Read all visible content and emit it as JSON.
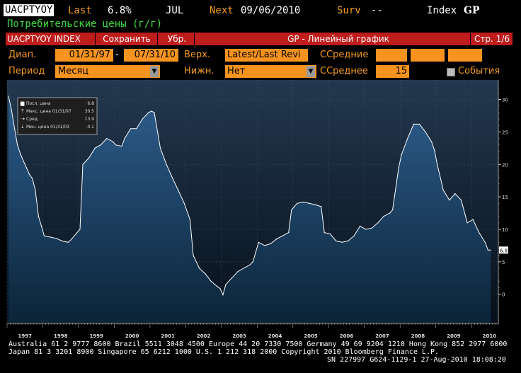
{
  "header": {
    "ticker": "UACPTYOY",
    "last_label": "Last",
    "last_value": "6.8%",
    "period": "JUL",
    "next_label": "Next",
    "next_date": "09/06/2010",
    "surv_label": "Surv",
    "surv_value": "--",
    "index_label": "Index",
    "function": "GP",
    "subtitle": "Потребительские цены (г/г)"
  },
  "toolbar": {
    "security": "UACPTYOY INDEX",
    "save": "Сохранить",
    "delete": "Убр.",
    "title": "GP - Линейный график",
    "page": "Стр. 1/6"
  },
  "controls": {
    "range_label": "Диап.",
    "start_date": "01/31/97",
    "dash": "-",
    "end_date": "07/31/10",
    "upper_label": "Верх.",
    "upper_value": "Latest/Last Revi",
    "ma1_label": "ССредние",
    "period_label": "Период",
    "period_value": "Месяц",
    "lower_label": "Нижн.",
    "lower_value": "Нет",
    "ma2_label": "ССреднее",
    "ma2_value": "15",
    "events_label": "События"
  },
  "legend": {
    "last_label": "Посл. цена",
    "last_value": "6.8",
    "max_label": "Макс. цена 01/31/97",
    "max_value": "30.5",
    "avg_label": "Сред.",
    "avg_value": "13.9",
    "min_label": "Мин. цена 01/31/03",
    "min_value": "-0.1"
  },
  "footer": {
    "line1": "Australia 61 2 9777 8600 Brazil 5511 3048 4500 Europe 44 20 7330 7500 Germany 49 69 9204 1210 Hong Kong 852 2977 6000",
    "line2": "Japan 81 3 3201 8900        Singapore 65 6212 1000        U.S. 1 212 318 2000        Copyright 2010 Bloomberg Finance L.P.",
    "line3": "SN 227997 G624-1129-1 27-Aug-2010 18:08:20"
  },
  "colors": {
    "accent": "#f7931e",
    "toolbar": "#bf1c1c",
    "chart_top": "#23384f",
    "fill_top": "#2e5d8c",
    "fill_bottom": "#0b2438"
  },
  "chart_data": {
    "type": "area",
    "last_value_label": "6.8",
    "x_years": [
      "1997",
      "1998",
      "1999",
      "2000",
      "2001",
      "2002",
      "2003",
      "2004",
      "2005",
      "2006",
      "2007",
      "2008",
      "2009",
      "2010"
    ],
    "yticks": [
      0,
      5,
      10,
      15,
      20,
      25,
      30
    ],
    "ylim": [
      -4.5,
      33
    ],
    "xlim": [
      1997.0,
      2010.75
    ],
    "grid": true,
    "legend_position": "top-left",
    "points": [
      [
        1997.04,
        30.5
      ],
      [
        1997.12,
        28.5
      ],
      [
        1997.21,
        25.5
      ],
      [
        1997.29,
        23.0
      ],
      [
        1997.38,
        21.5
      ],
      [
        1997.46,
        20.5
      ],
      [
        1997.54,
        19.5
      ],
      [
        1997.62,
        18.5
      ],
      [
        1997.71,
        17.8
      ],
      [
        1997.79,
        16.0
      ],
      [
        1997.88,
        12.0
      ],
      [
        1997.96,
        10.5
      ],
      [
        1998.04,
        9.0
      ],
      [
        1998.21,
        8.8
      ],
      [
        1998.38,
        8.6
      ],
      [
        1998.54,
        8.2
      ],
      [
        1998.71,
        8.0
      ],
      [
        1998.79,
        8.4
      ],
      [
        1998.96,
        9.5
      ],
      [
        1999.04,
        10.0
      ],
      [
        1999.12,
        20.0
      ],
      [
        1999.29,
        21.0
      ],
      [
        1999.46,
        22.5
      ],
      [
        1999.62,
        23.0
      ],
      [
        1999.79,
        24.0
      ],
      [
        1999.96,
        23.5
      ],
      [
        2000.04,
        23.0
      ],
      [
        2000.21,
        22.8
      ],
      [
        2000.29,
        24.0
      ],
      [
        2000.46,
        25.5
      ],
      [
        2000.62,
        25.5
      ],
      [
        2000.79,
        27.0
      ],
      [
        2000.96,
        28.0
      ],
      [
        2001.04,
        28.2
      ],
      [
        2001.12,
        28.0
      ],
      [
        2001.29,
        22.5
      ],
      [
        2001.46,
        20.0
      ],
      [
        2001.62,
        18.0
      ],
      [
        2001.79,
        16.0
      ],
      [
        2001.96,
        14.0
      ],
      [
        2002.12,
        11.5
      ],
      [
        2002.21,
        6.0
      ],
      [
        2002.38,
        4.0
      ],
      [
        2002.54,
        3.2
      ],
      [
        2002.71,
        2.0
      ],
      [
        2002.88,
        1.2
      ],
      [
        2002.96,
        0.9
      ],
      [
        2003.04,
        -0.1
      ],
      [
        2003.12,
        1.5
      ],
      [
        2003.29,
        2.5
      ],
      [
        2003.46,
        3.5
      ],
      [
        2003.62,
        4.0
      ],
      [
        2003.79,
        4.5
      ],
      [
        2003.88,
        5.0
      ],
      [
        2004.04,
        8.0
      ],
      [
        2004.21,
        7.5
      ],
      [
        2004.38,
        7.8
      ],
      [
        2004.54,
        8.5
      ],
      [
        2004.71,
        9.0
      ],
      [
        2004.88,
        9.5
      ],
      [
        2004.96,
        13.0
      ],
      [
        2005.12,
        14.0
      ],
      [
        2005.29,
        14.2
      ],
      [
        2005.46,
        14.0
      ],
      [
        2005.62,
        13.8
      ],
      [
        2005.79,
        13.5
      ],
      [
        2005.88,
        9.5
      ],
      [
        2006.04,
        9.3
      ],
      [
        2006.21,
        8.2
      ],
      [
        2006.38,
        8.0
      ],
      [
        2006.54,
        8.2
      ],
      [
        2006.71,
        9.0
      ],
      [
        2006.88,
        10.5
      ],
      [
        2007.04,
        10.0
      ],
      [
        2007.21,
        10.2
      ],
      [
        2007.38,
        11.0
      ],
      [
        2007.54,
        12.0
      ],
      [
        2007.71,
        12.5
      ],
      [
        2007.79,
        13.0
      ],
      [
        2007.96,
        19.5
      ],
      [
        2008.04,
        21.5
      ],
      [
        2008.21,
        24.0
      ],
      [
        2008.38,
        26.2
      ],
      [
        2008.54,
        26.2
      ],
      [
        2008.71,
        25.0
      ],
      [
        2008.88,
        23.5
      ],
      [
        2008.96,
        22.2
      ],
      [
        2009.04,
        20.0
      ],
      [
        2009.21,
        16.0
      ],
      [
        2009.38,
        14.5
      ],
      [
        2009.54,
        15.5
      ],
      [
        2009.71,
        14.5
      ],
      [
        2009.88,
        11.0
      ],
      [
        2010.04,
        11.5
      ],
      [
        2010.21,
        9.5
      ],
      [
        2010.38,
        8.0
      ],
      [
        2010.46,
        6.8
      ],
      [
        2010.54,
        6.8
      ]
    ]
  }
}
